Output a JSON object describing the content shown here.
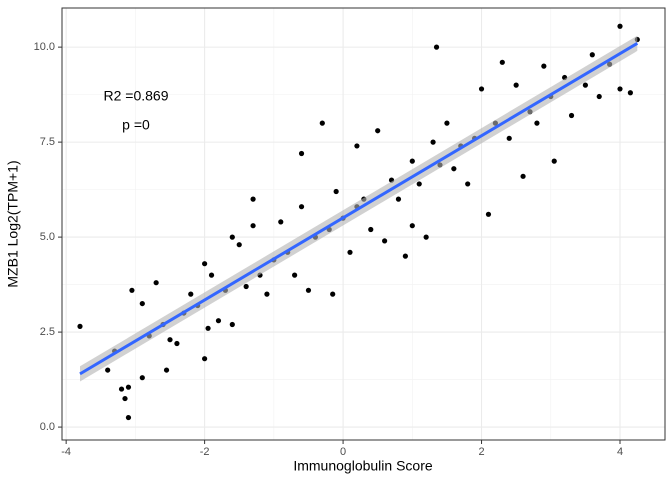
{
  "chart_data": {
    "type": "scatter",
    "x_label": "Immunoglobulin Score",
    "y_label": "MZB1 Log2(TPM+1)",
    "annotations": [
      "R2 =0.869",
      "p =0"
    ],
    "xlim": [
      -4.06,
      4.65
    ],
    "ylim": [
      -0.34,
      11.03
    ],
    "xticks": [
      -4,
      -2,
      0,
      2,
      4
    ],
    "yticks": [
      {
        "value": 0,
        "label": "0.0"
      },
      {
        "value": 2.5,
        "label": "2.5"
      },
      {
        "value": 5,
        "label": "5.0"
      },
      {
        "value": 7.5,
        "label": "7.5"
      },
      {
        "value": 10,
        "label": "10.0"
      }
    ],
    "x_minor_grid": [
      -3,
      -1,
      1,
      3
    ],
    "y_minor_grid": [
      1.25,
      3.75,
      6.25,
      8.75
    ],
    "grid": true,
    "color": "#000000",
    "x": [
      -3.8,
      -3.1,
      -3.15,
      -3.1,
      -3.2,
      -3.05,
      -2.9,
      -3.4,
      1.35,
      4.0,
      4.25,
      4.15,
      3.85,
      4.0,
      -2.55,
      -2.0,
      -1.95,
      -1.6,
      -1.3,
      -1.5,
      -0.3,
      -0.6,
      0.2,
      0.5,
      -0.15,
      -0.5,
      0.9,
      1.2,
      1.0,
      2.0,
      2.5,
      2.9,
      3.5,
      3.3,
      3.7,
      3.05,
      2.6,
      2.1,
      1.6,
      1.3,
      0.7,
      0.3,
      0.0,
      -0.2,
      -0.4,
      -0.8,
      -1.0,
      -1.2,
      -1.4,
      -1.7,
      -2.1,
      -2.3,
      -2.6,
      -2.8,
      -2.4,
      -2.2,
      -1.9,
      -1.1,
      -0.9,
      -0.6,
      -0.1,
      0.4,
      0.6,
      0.8,
      1.1,
      1.4,
      1.7,
      1.9,
      2.2,
      2.4,
      2.7,
      3.0,
      3.2,
      2.8,
      1.5,
      1.0,
      0.1,
      -0.7,
      -1.8,
      -2.7,
      -2.0,
      -1.3,
      0.2,
      1.8,
      2.3,
      3.6,
      -1.6,
      -2.5,
      -3.3,
      -2.9
    ],
    "values": [
      2.65,
      0.25,
      0.75,
      1.05,
      1.0,
      3.6,
      3.25,
      1.5,
      10.0,
      10.55,
      10.2,
      8.8,
      9.55,
      8.9,
      1.5,
      1.8,
      2.6,
      5.0,
      5.3,
      4.8,
      8.0,
      7.2,
      7.4,
      7.8,
      3.5,
      3.6,
      4.5,
      5.0,
      5.3,
      8.9,
      9.0,
      9.5,
      9.0,
      8.2,
      8.7,
      7.0,
      6.6,
      5.6,
      6.8,
      7.5,
      6.5,
      6.0,
      5.5,
      5.2,
      5.0,
      4.6,
      4.4,
      4.0,
      3.7,
      3.6,
      3.2,
      3.0,
      2.7,
      2.4,
      2.2,
      3.5,
      4.0,
      3.5,
      5.4,
      5.8,
      6.2,
      5.2,
      4.9,
      6.0,
      6.4,
      6.9,
      7.4,
      7.6,
      8.0,
      7.6,
      8.3,
      8.7,
      9.2,
      8.0,
      8.0,
      7.0,
      4.6,
      4.0,
      2.8,
      3.8,
      4.3,
      6.0,
      5.8,
      6.4,
      9.6,
      9.8,
      2.7,
      2.3,
      2.0,
      1.3
    ],
    "fit": {
      "color": "#3366ff",
      "band_color": "#b3b3b3",
      "x": [
        -3.8,
        4.25
      ],
      "y": [
        1.4,
        10.1
      ],
      "ci_lower": [
        1.2,
        9.9
      ],
      "ci_upper": [
        1.6,
        10.3
      ]
    }
  }
}
